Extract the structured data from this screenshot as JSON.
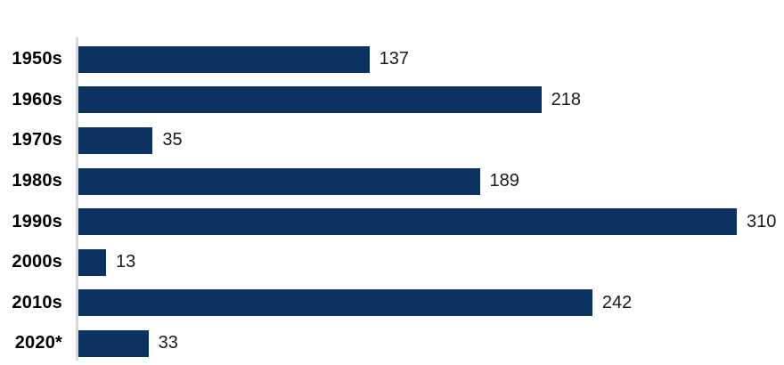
{
  "chart_data": {
    "type": "bar",
    "orientation": "horizontal",
    "title": "",
    "xlabel": "",
    "ylabel": "",
    "categories": [
      "1950s",
      "1960s",
      "1970s",
      "1980s",
      "1990s",
      "2000s",
      "2010s",
      "2020*"
    ],
    "values": [
      137,
      218,
      35,
      189,
      310,
      13,
      242,
      33
    ],
    "value_labels_shown": true,
    "xlim": [
      0,
      310
    ],
    "grid": false,
    "legend": "none",
    "bar_color": "#0c3262",
    "axis_line_color": "#d9d9d9",
    "category_label_color": "#000000",
    "value_label_color": "#1a1a1a",
    "background_color": "#ffffff"
  }
}
